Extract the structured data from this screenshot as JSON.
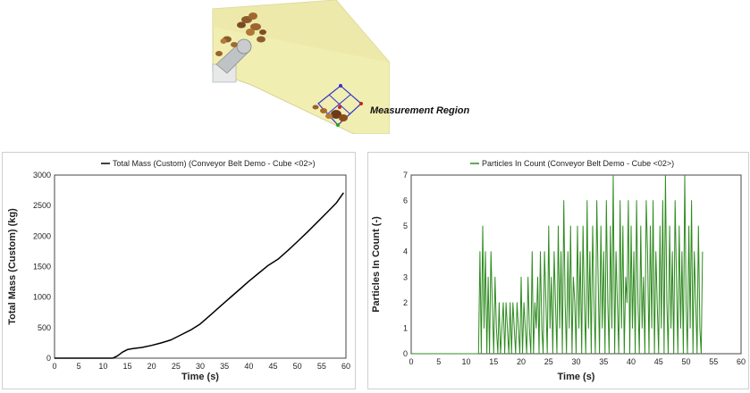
{
  "scene": {
    "annotation": "Measurement Region"
  },
  "chart_data": [
    {
      "type": "line",
      "legend": "Total Mass (Custom) (Conveyor Belt Demo - Cube <02>)",
      "xlabel": "Time (s)",
      "ylabel": "Total Mass (Custom) (kg)",
      "xlim": [
        0,
        60
      ],
      "ylim": [
        0,
        3000
      ],
      "xticks": [
        "0",
        "5",
        "10",
        "15",
        "20",
        "25",
        "30",
        "35",
        "40",
        "45",
        "50",
        "55",
        "60"
      ],
      "yticks": [
        "0",
        "500",
        "1000",
        "1500",
        "2000",
        "2500",
        "3000"
      ],
      "grid": true,
      "legend_position": "top-center",
      "color": "#000000",
      "series": [
        {
          "x": [
            0,
            12,
            13,
            14,
            15,
            16,
            18,
            20,
            22,
            24,
            26,
            28,
            30,
            32,
            34,
            36,
            38,
            40,
            42,
            44,
            46,
            48,
            50,
            52,
            54,
            56,
            58,
            59.5
          ],
          "y": [
            0,
            0,
            40,
            100,
            140,
            155,
            175,
            210,
            250,
            300,
            380,
            460,
            560,
            700,
            840,
            980,
            1120,
            1260,
            1390,
            1520,
            1620,
            1760,
            1910,
            2060,
            2220,
            2380,
            2540,
            2710
          ]
        }
      ]
    },
    {
      "type": "line",
      "legend": "Particles In Count (Conveyor Belt Demo - Cube <02>)",
      "xlabel": "Time (s)",
      "ylabel": "Particles In Count (-)",
      "xlim": [
        0,
        60
      ],
      "ylim": [
        0,
        7
      ],
      "xticks": [
        "0",
        "5",
        "10",
        "15",
        "20",
        "25",
        "30",
        "35",
        "40",
        "45",
        "50",
        "55",
        "60"
      ],
      "yticks": [
        "0",
        "1",
        "2",
        "3",
        "4",
        "5",
        "6",
        "7"
      ],
      "grid": true,
      "legend_position": "top-center",
      "color": "#2e8b1f",
      "series": [
        {
          "step": 0.25,
          "x_start": 12.5,
          "values": [
            4,
            0,
            5,
            1,
            4,
            0,
            3,
            0,
            4,
            2,
            0,
            3,
            1,
            0,
            2,
            0,
            1,
            2,
            0,
            2,
            1,
            0,
            2,
            0,
            2,
            1,
            0,
            2,
            1,
            0,
            3,
            0,
            2,
            1,
            0,
            3,
            1,
            0,
            4,
            0,
            2,
            1,
            3,
            0,
            4,
            1,
            0,
            4,
            2,
            0,
            5,
            1,
            3,
            0,
            4,
            2,
            0,
            5,
            1,
            4,
            0,
            6,
            2,
            0,
            4,
            1,
            5,
            0,
            3,
            2,
            0,
            5,
            1,
            4,
            0,
            5,
            2,
            0,
            6,
            1,
            4,
            0,
            5,
            2,
            0,
            6,
            3,
            0,
            5,
            1,
            4,
            0,
            6,
            2,
            0,
            5,
            1,
            7,
            0,
            4,
            2,
            0,
            6,
            1,
            5,
            0,
            3,
            2,
            6,
            0,
            5,
            1,
            4,
            0,
            6,
            2,
            0,
            5,
            1,
            3,
            0,
            6,
            4,
            0,
            5,
            1,
            6,
            0,
            4,
            2,
            0,
            5,
            1,
            6,
            0,
            7,
            2,
            0,
            5,
            1,
            4,
            0,
            6,
            3,
            0,
            5,
            1,
            4,
            0,
            7,
            2,
            0,
            5,
            1,
            6,
            0,
            4,
            2,
            0,
            5,
            1,
            0,
            4
          ]
        }
      ]
    }
  ]
}
